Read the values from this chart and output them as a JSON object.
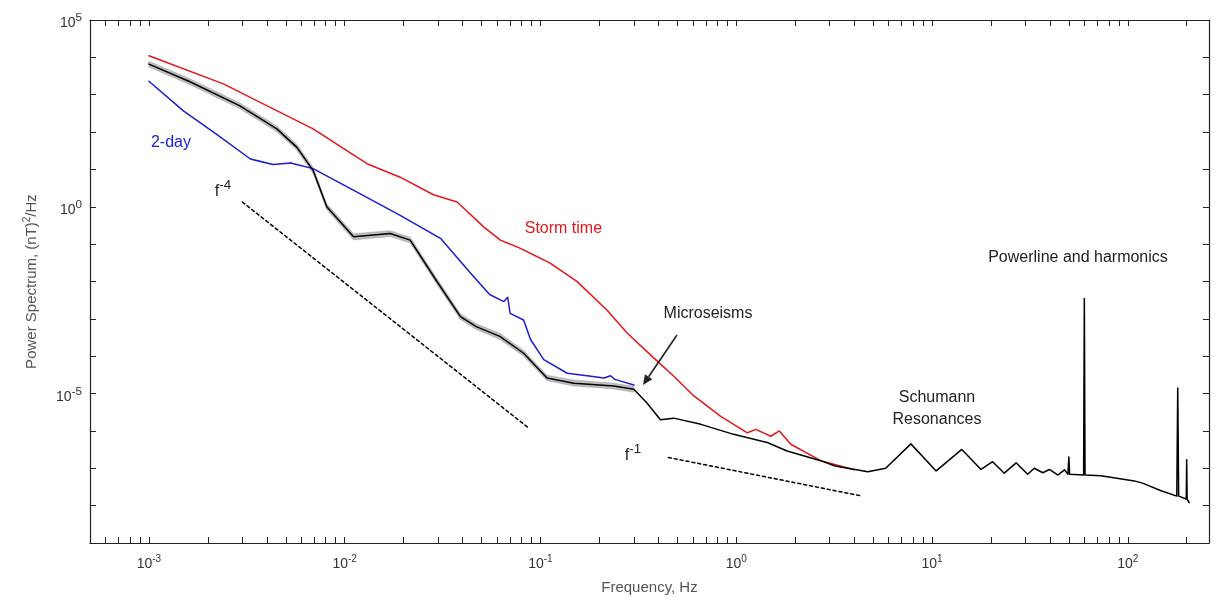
{
  "chart_data": {
    "type": "line",
    "xlabel": "Frequency, Hz",
    "ylabel": "Power Spectrum, (nT)$^{2}$/Hz",
    "log": "xy",
    "marker": "none",
    "grid": false,
    "xlim": [
      0.0005,
      260
    ],
    "ylim": [
      1e-09,
      100000
    ],
    "xticks": [
      {
        "value": 0.0006,
        "label": null
      },
      {
        "value": 0.0007,
        "label": null
      },
      {
        "value": 0.0008,
        "label": null
      },
      {
        "value": 0.0009,
        "label": null
      },
      {
        "value": 0.001,
        "label": "10$^{-3}$"
      },
      {
        "value": 0.002,
        "label": null
      },
      {
        "value": 0.003,
        "label": null
      },
      {
        "value": 0.004,
        "label": null
      },
      {
        "value": 0.005,
        "label": null
      },
      {
        "value": 0.006,
        "label": null
      },
      {
        "value": 0.007,
        "label": null
      },
      {
        "value": 0.008,
        "label": null
      },
      {
        "value": 0.009,
        "label": null
      },
      {
        "value": 0.01,
        "label": "10$^{-2}$"
      },
      {
        "value": 0.02,
        "label": null
      },
      {
        "value": 0.03,
        "label": null
      },
      {
        "value": 0.04,
        "label": null
      },
      {
        "value": 0.05,
        "label": null
      },
      {
        "value": 0.06,
        "label": null
      },
      {
        "value": 0.07,
        "label": null
      },
      {
        "value": 0.08,
        "label": null
      },
      {
        "value": 0.09,
        "label": null
      },
      {
        "value": 0.1,
        "label": "10$^{-1}$"
      },
      {
        "value": 0.2,
        "label": null
      },
      {
        "value": 0.3,
        "label": null
      },
      {
        "value": 0.4,
        "label": null
      },
      {
        "value": 0.5,
        "label": null
      },
      {
        "value": 0.6,
        "label": null
      },
      {
        "value": 0.7,
        "label": null
      },
      {
        "value": 0.8,
        "label": null
      },
      {
        "value": 0.9,
        "label": null
      },
      {
        "value": 1,
        "label": "10$^{0}$"
      },
      {
        "value": 2,
        "label": null
      },
      {
        "value": 3,
        "label": null
      },
      {
        "value": 4,
        "label": null
      },
      {
        "value": 5,
        "label": null
      },
      {
        "value": 6,
        "label": null
      },
      {
        "value": 7,
        "label": null
      },
      {
        "value": 8,
        "label": null
      },
      {
        "value": 9,
        "label": null
      },
      {
        "value": 10,
        "label": "10$^{1}$"
      },
      {
        "value": 20,
        "label": null
      },
      {
        "value": 30,
        "label": null
      },
      {
        "value": 40,
        "label": null
      },
      {
        "value": 50,
        "label": null
      },
      {
        "value": 60,
        "label": null
      },
      {
        "value": 70,
        "label": null
      },
      {
        "value": 80,
        "label": null
      },
      {
        "value": 90,
        "label": null
      },
      {
        "value": 100,
        "label": "10$^{2}$"
      },
      {
        "value": 200,
        "label": null
      }
    ],
    "yticks": [
      {
        "value": 1e-09,
        "label": null
      },
      {
        "value": 1e-08,
        "label": null
      },
      {
        "value": 1e-07,
        "label": null
      },
      {
        "value": 1e-06,
        "label": null
      },
      {
        "value": 1e-05,
        "label": "10$^{-5}$"
      },
      {
        "value": 0.0001,
        "label": null
      },
      {
        "value": 0.001,
        "label": null
      },
      {
        "value": 0.01,
        "label": null
      },
      {
        "value": 0.1,
        "label": null
      },
      {
        "value": 1,
        "label": "10$^{0}$"
      },
      {
        "value": 10,
        "label": null
      },
      {
        "value": 100,
        "label": null
      },
      {
        "value": 1000,
        "label": null
      },
      {
        "value": 10000,
        "label": null
      },
      {
        "value": 100000,
        "label": "10$^{5}$"
      }
    ],
    "series": [
      {
        "name": "Storm time",
        "color": "#e3161b",
        "x": [
          0.001,
          0.0024,
          0.0069,
          0.013,
          0.0192,
          0.0284,
          0.0375,
          0.0513,
          0.0624,
          0.079,
          0.112,
          0.154,
          0.219,
          0.277,
          0.38,
          0.48,
          0.61,
          0.83,
          1.14,
          1.26,
          1.5,
          1.66,
          1.9,
          2.7,
          4.0
        ],
        "values": [
          11000,
          1950,
          122,
          14.2,
          6.2,
          2.1,
          1.34,
          0.29,
          0.128,
          0.077,
          0.031,
          0.0099,
          0.0017,
          0.00042,
          8.9e-05,
          2.9e-05,
          8.5e-06,
          2.5e-06,
          8.9e-07,
          1.1e-06,
          7.2e-07,
          1e-06,
          4.4e-07,
          1.6e-07,
          9.1e-08
        ]
      },
      {
        "name": "2-day",
        "color": "#1c1cd4",
        "x": [
          0.001,
          0.0015,
          0.0022,
          0.0033,
          0.0043,
          0.0053,
          0.0069,
          0.0115,
          0.0192,
          0.031,
          0.044,
          0.055,
          0.065,
          0.068,
          0.07,
          0.082,
          0.089,
          0.104,
          0.137,
          0.173,
          0.211,
          0.228,
          0.24,
          0.3
        ],
        "values": [
          2300,
          370,
          89,
          19,
          13.5,
          14.8,
          10.5,
          2.5,
          0.59,
          0.14,
          0.0166,
          0.0045,
          0.0029,
          0.0038,
          0.0014,
          0.00093,
          0.00028,
          8.1e-05,
          3.5e-05,
          3e-05,
          2.6e-05,
          3e-05,
          2.4e-05,
          1.7e-05
        ]
      },
      {
        "color": "#000000",
        "x": [
          0.001,
          0.0016,
          0.0029,
          0.0045,
          0.0057,
          0.0069,
          0.0081,
          0.0111,
          0.0171,
          0.0216,
          0.0296,
          0.039,
          0.047,
          0.062,
          0.082,
          0.108,
          0.148,
          0.237,
          0.3,
          0.35,
          0.41,
          0.48,
          0.66,
          0.97,
          1.44,
          1.82,
          2.7,
          3.2,
          4.7,
          5.8,
          7.8,
          10.5,
          14.2,
          17.8,
          20.4,
          23.4,
          26.9,
          30.8,
          33.3,
          36.8,
          39.8,
          44,
          47.5,
          49.5,
          50,
          50.5,
          59.5,
          60,
          60.5,
          73,
          108,
          119,
          148,
          178,
          180,
          182,
          199,
          200,
          201,
          206
        ],
        "values": [
          6600,
          2300,
          510,
          122,
          39,
          9.3,
          1.0,
          0.157,
          0.193,
          0.128,
          0.01,
          0.00115,
          0.00062,
          0.00034,
          0.00012,
          2.6e-05,
          1.9e-05,
          1.6e-05,
          1.3e-05,
          5.6e-06,
          2e-06,
          2.2e-06,
          1.5e-06,
          8.1e-07,
          4.9e-07,
          2.9e-07,
          1.6e-07,
          1.15e-07,
          8.1e-08,
          1e-07,
          4.5e-07,
          8.5e-08,
          3.2e-07,
          9.3e-08,
          1.5e-07,
          7.4e-08,
          1.4e-07,
          6.9e-08,
          1e-07,
          7.6e-08,
          9.3e-08,
          6.6e-08,
          9.1e-08,
          6.9e-08,
          2e-07,
          6.9e-08,
          6.6e-08,
          0.0035,
          6.6e-08,
          6.3e-08,
          4.6e-08,
          4e-08,
          2.5e-08,
          1.8e-08,
          1.4e-05,
          1.8e-08,
          1.5e-08,
          1.7e-07,
          1.5e-08,
          1.2e-08
        ],
        "upper": [
          7900,
          2760,
          610,
          146,
          47,
          11.2,
          1.2,
          0.19,
          0.23,
          0.154,
          0.012,
          0.00138,
          0.00074,
          0.00041,
          0.000144,
          3.1e-05,
          2.3e-05,
          1.9e-05,
          1.56e-05,
          null,
          null,
          null,
          null,
          null,
          null,
          null,
          null,
          null,
          null,
          null,
          null,
          null,
          null,
          null,
          null,
          null,
          null,
          null,
          null,
          null,
          null,
          null,
          null,
          null,
          null,
          null,
          null,
          null,
          null,
          null,
          null,
          null,
          null,
          null,
          null,
          null,
          null,
          null,
          null,
          null
        ],
        "lower": [
          5500,
          1920,
          425,
          102,
          32.5,
          7.8,
          0.83,
          0.13,
          0.16,
          0.107,
          0.0083,
          0.00096,
          0.00052,
          0.00028,
          0.0001,
          2.2e-05,
          1.6e-05,
          1.33e-05,
          1.08e-05,
          null,
          null,
          null,
          null,
          null,
          null,
          null,
          null,
          null,
          null,
          null,
          null,
          null,
          null,
          null,
          null,
          null,
          null,
          null,
          null,
          null,
          null,
          null,
          null,
          null,
          null,
          null,
          null,
          null,
          null,
          null,
          null,
          null,
          null,
          null,
          null,
          null,
          null,
          null,
          null,
          null
        ]
      },
      {
        "color": "#000000",
        "line_style": "dotted",
        "x": [
          0.003,
          0.087
        ],
        "values": [
          1.34,
          1.2e-06
        ]
      },
      {
        "color": "#000000",
        "line_style": "dotted",
        "x": [
          0.45,
          4.4
        ],
        "values": [
          1.95e-07,
          1.8e-08
        ]
      }
    ],
    "annotations": [
      "f$^{-4}$",
      "f$^{-1}$",
      "Microseisms",
      "Schumann Resonances",
      "Powerline and harmonics"
    ]
  }
}
